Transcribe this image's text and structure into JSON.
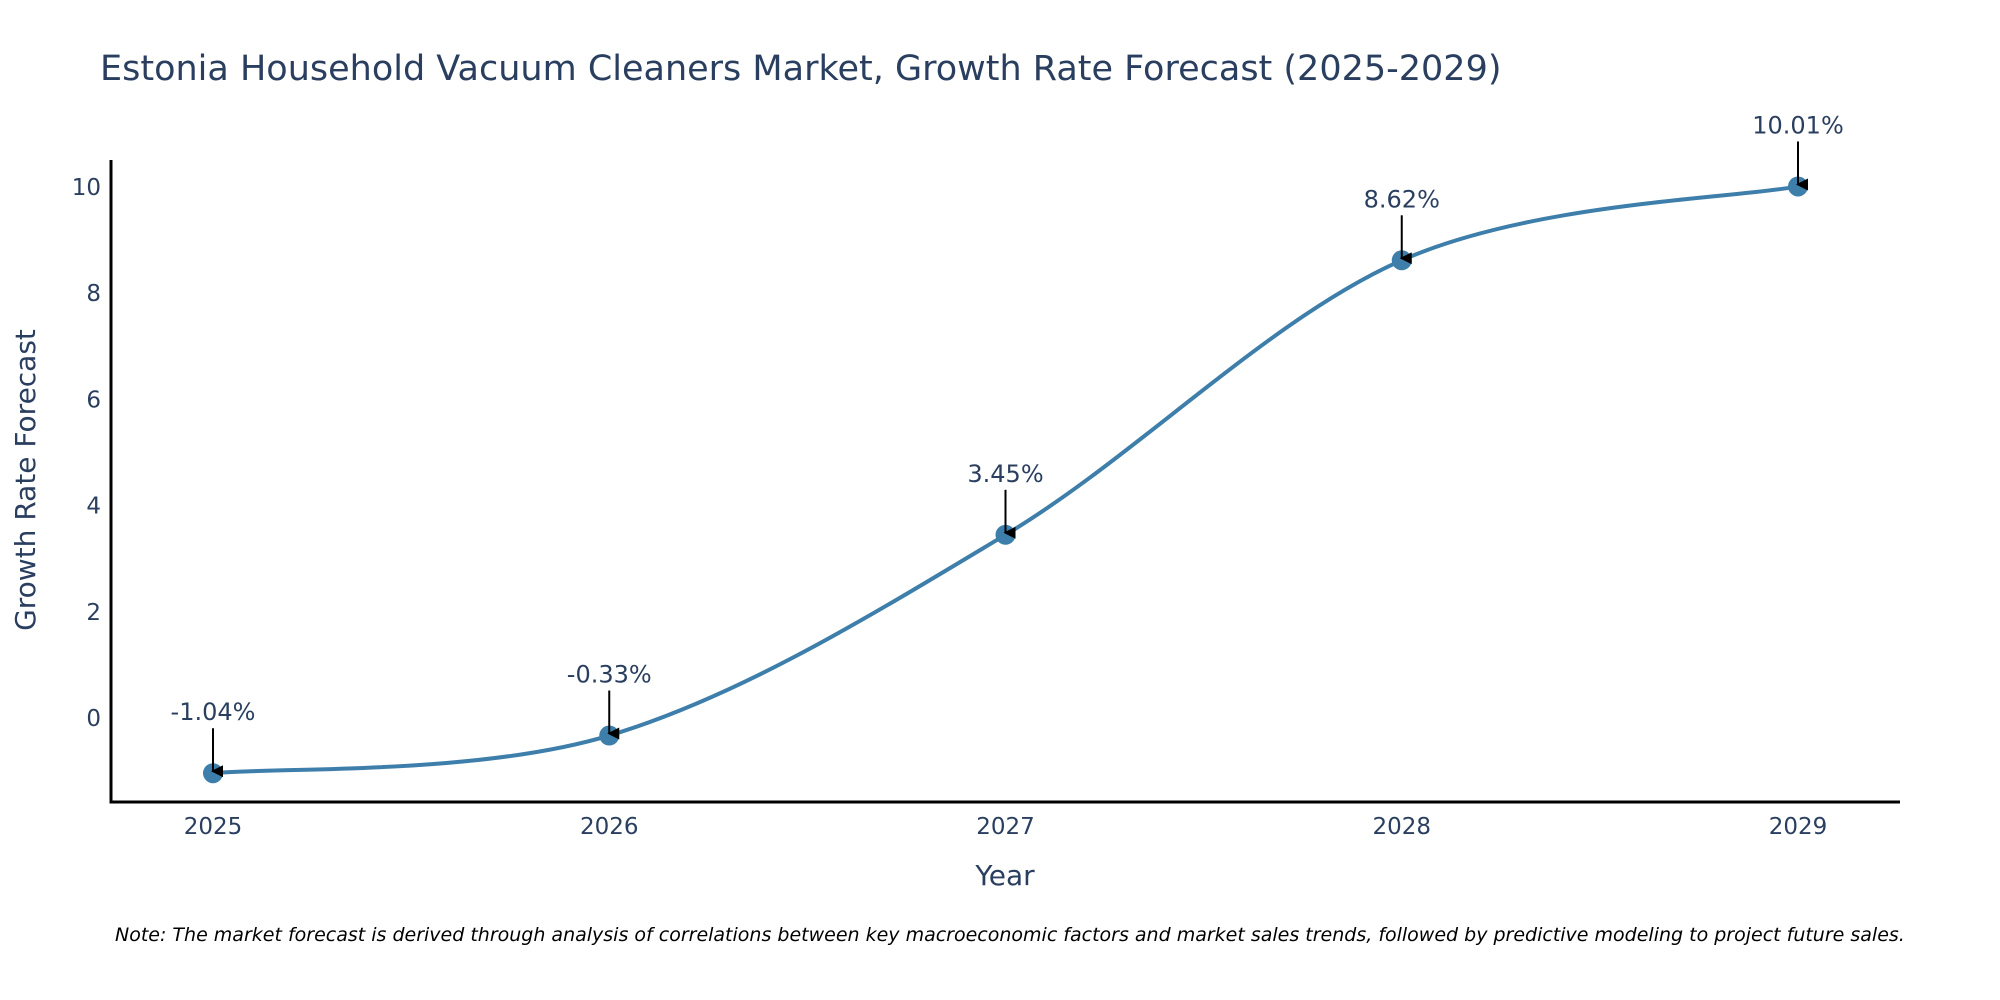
{
  "chart_data": {
    "type": "line",
    "title": "Estonia Household Vacuum Cleaners Market, Growth Rate Forecast (2025-2029)",
    "xlabel": "Year",
    "ylabel": "Growth Rate Forecast",
    "categories": [
      "2025",
      "2026",
      "2027",
      "2028",
      "2029"
    ],
    "series": [
      {
        "name": "Growth Rate Forecast",
        "values": [
          -1.04,
          -0.33,
          3.45,
          8.62,
          10.01
        ],
        "labels": [
          "-1.04%",
          "-0.33%",
          "3.45%",
          "8.62%",
          "10.01%"
        ]
      }
    ],
    "ylim": [
      -1.6,
      10.5
    ],
    "yticks": [
      0,
      2,
      4,
      6,
      8,
      10
    ],
    "yticklabels": [
      "0",
      "2",
      "4",
      "6",
      "8",
      "10"
    ],
    "line_shape": "spline",
    "grid": false,
    "legend": "none"
  },
  "note": "Note: The market forecast is derived through analysis of correlations between key macroeconomic factors and market sales trends, followed by predictive modeling to project future sales.",
  "colors": {
    "line": "#3d7eaa",
    "marker": "#3d7eaa",
    "arrow": "#000000",
    "text": "#2a3f5f",
    "axis": "#000000"
  }
}
